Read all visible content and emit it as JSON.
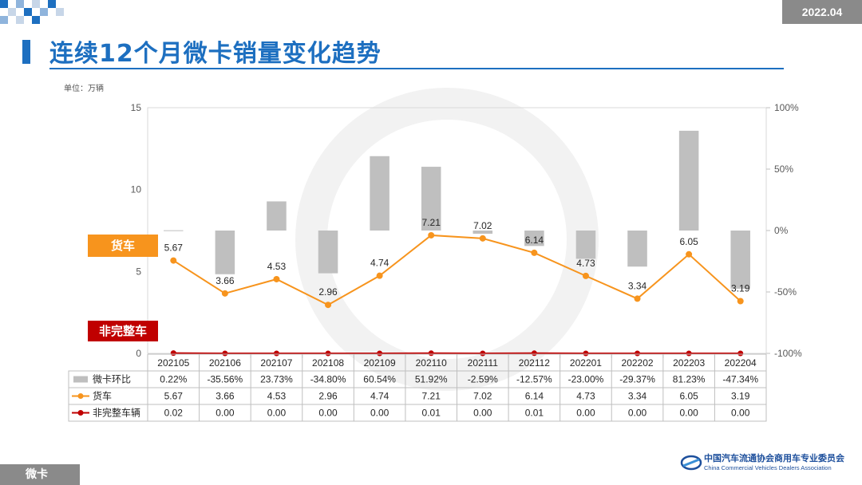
{
  "header": {
    "date": "2022.04",
    "title": "连续12个月微卡销量变化趋势",
    "unit": "单位：万辆"
  },
  "tags": {
    "truck": "货车",
    "incomplete": "非完整车"
  },
  "footer": {
    "section": "微卡",
    "org_name": "中国汽车流通协会商用车专业委员会",
    "org_name_en": "China Commercial Vehicles Dealers Association"
  },
  "colors": {
    "bar": "#bfbfbf",
    "truck": "#f7941d",
    "incomplete": "#c00000",
    "title": "#1d6fc0"
  },
  "chart_data": {
    "type": "bar",
    "categories": [
      "202105",
      "202106",
      "202107",
      "202108",
      "202109",
      "202110",
      "202111",
      "202112",
      "202201",
      "202202",
      "202203",
      "202204"
    ],
    "series": [
      {
        "name": "微卡环比",
        "type": "bar",
        "axis": "right",
        "values": [
          0.22,
          -35.56,
          23.73,
          -34.8,
          60.54,
          51.92,
          -2.59,
          -12.57,
          -23.0,
          -29.37,
          81.23,
          -47.34
        ],
        "labels": [
          "0.22%",
          "-35.56%",
          "23.73%",
          "-34.80%",
          "60.54%",
          "51.92%",
          "-2.59%",
          "-12.57%",
          "-23.00%",
          "-29.37%",
          "81.23%",
          "-47.34%"
        ]
      },
      {
        "name": "货车",
        "type": "line",
        "axis": "left",
        "values": [
          5.67,
          3.66,
          4.53,
          2.96,
          4.74,
          7.21,
          7.02,
          6.14,
          4.73,
          3.34,
          6.05,
          3.19
        ],
        "labels": [
          "5.67",
          "3.66",
          "4.53",
          "2.96",
          "4.74",
          "7.21",
          "7.02",
          "6.14",
          "4.73",
          "3.34",
          "6.05",
          "3.19"
        ]
      },
      {
        "name": "非完整车辆",
        "type": "line",
        "axis": "left",
        "values": [
          0.02,
          0.0,
          0.0,
          0.0,
          0.0,
          0.01,
          0.0,
          0.01,
          0.0,
          0.0,
          0.0,
          0.0
        ],
        "labels": [
          "0.02",
          "0.00",
          "0.00",
          "0.00",
          "0.00",
          "0.01",
          "0.00",
          "0.01",
          "0.00",
          "0.00",
          "0.00",
          "0.00"
        ]
      }
    ],
    "ylim_left": [
      0,
      15
    ],
    "yticks_left": [
      "0",
      "5",
      "10",
      "15"
    ],
    "ylim_right": [
      -100,
      100
    ],
    "yticks_right": [
      "-100%",
      "-50%",
      "0%",
      "50%",
      "100%"
    ],
    "legend": "table-below"
  }
}
